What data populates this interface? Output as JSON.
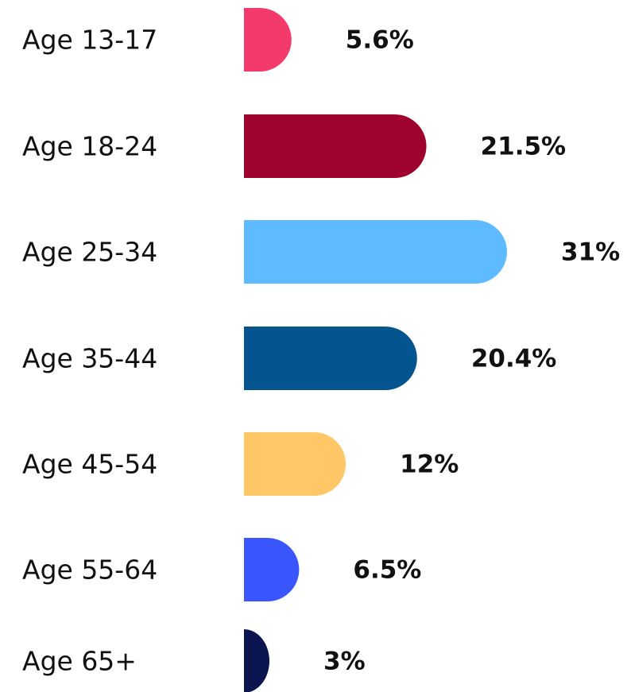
{
  "chart_data": {
    "type": "bar",
    "orientation": "horizontal",
    "categories": [
      "Age 13-17",
      "Age 18-24",
      "Age 25-34",
      "Age 35-44",
      "Age 45-54",
      "Age 55-64",
      "Age 65+"
    ],
    "values": [
      5.6,
      21.5,
      31,
      20.4,
      12,
      6.5,
      3
    ],
    "value_labels": [
      "5.6%",
      "21.5%",
      "31%",
      "20.4%",
      "12%",
      "6.5%",
      "3%"
    ],
    "colors": [
      "#f4396b",
      "#a0022e",
      "#5ebbff",
      "#03548f",
      "#ffc766",
      "#3a57ff",
      "#0b1650"
    ]
  }
}
